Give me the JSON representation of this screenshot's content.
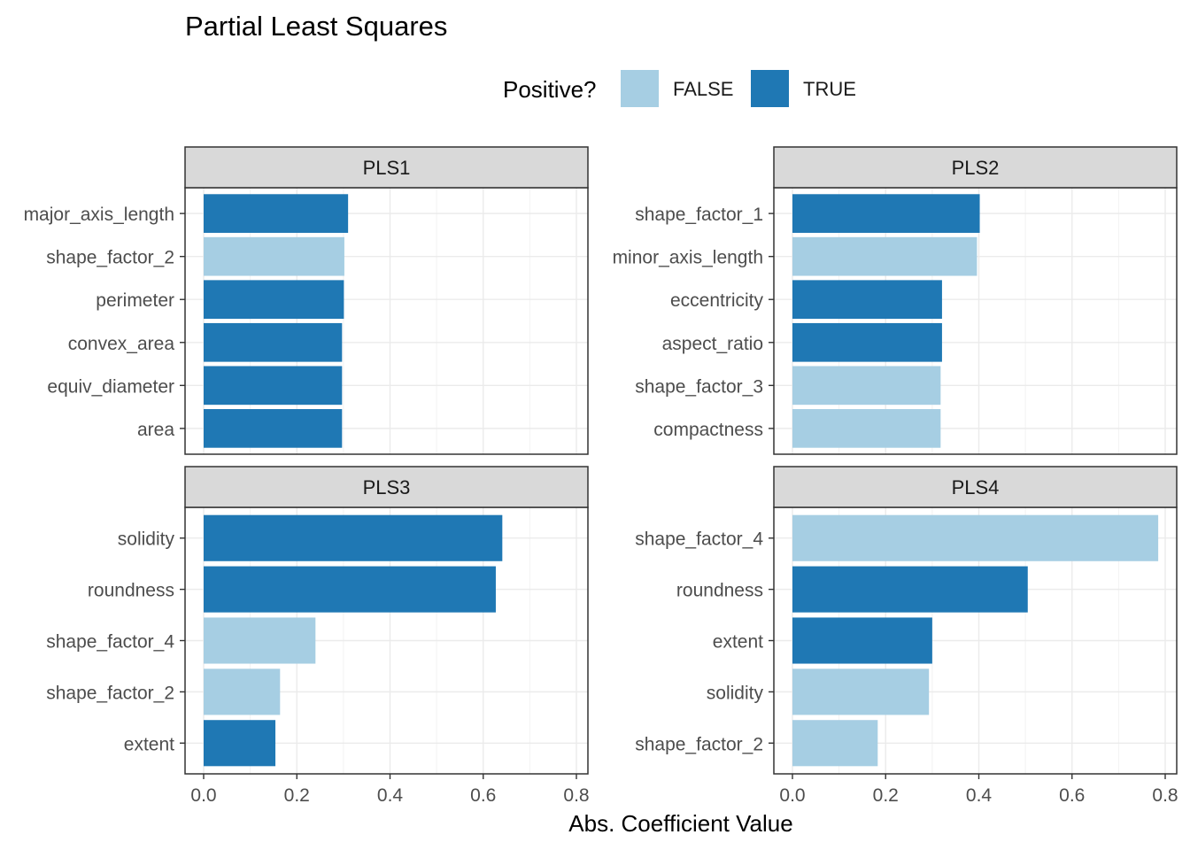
{
  "chart_data": {
    "type": "bar",
    "orientation": "horizontal",
    "title": "Partial Least Squares",
    "xlabel": "Abs. Coefficient Value",
    "xlim": [
      0,
      0.8
    ],
    "xticks": [
      "0.0",
      "0.2",
      "0.4",
      "0.6",
      "0.8"
    ],
    "grid": true,
    "legend": {
      "title": "Positive?",
      "position": "top",
      "entries": [
        {
          "label": "FALSE",
          "color": "#a6cee3"
        },
        {
          "label": "TRUE",
          "color": "#1f78b4"
        }
      ]
    },
    "panels": [
      {
        "name": "PLS1",
        "categories": [
          "major_axis_length",
          "shape_factor_2",
          "perimeter",
          "convex_area",
          "equiv_diameter",
          "area"
        ],
        "values": [
          0.31,
          0.302,
          0.301,
          0.297,
          0.297,
          0.297
        ],
        "positive": [
          true,
          false,
          true,
          true,
          true,
          true
        ]
      },
      {
        "name": "PLS2",
        "categories": [
          "shape_factor_1",
          "minor_axis_length",
          "eccentricity",
          "aspect_ratio",
          "shape_factor_3",
          "compactness"
        ],
        "values": [
          0.402,
          0.396,
          0.321,
          0.321,
          0.318,
          0.318
        ],
        "positive": [
          true,
          false,
          true,
          true,
          false,
          false
        ]
      },
      {
        "name": "PLS3",
        "categories": [
          "solidity",
          "roundness",
          "shape_factor_4",
          "shape_factor_2",
          "extent"
        ],
        "values": [
          0.641,
          0.627,
          0.24,
          0.164,
          0.154
        ],
        "positive": [
          true,
          true,
          false,
          false,
          true
        ]
      },
      {
        "name": "PLS4",
        "categories": [
          "shape_factor_4",
          "roundness",
          "extent",
          "solidity",
          "shape_factor_2"
        ],
        "values": [
          0.785,
          0.505,
          0.3,
          0.293,
          0.183
        ],
        "positive": [
          false,
          true,
          true,
          false,
          false
        ]
      }
    ]
  }
}
